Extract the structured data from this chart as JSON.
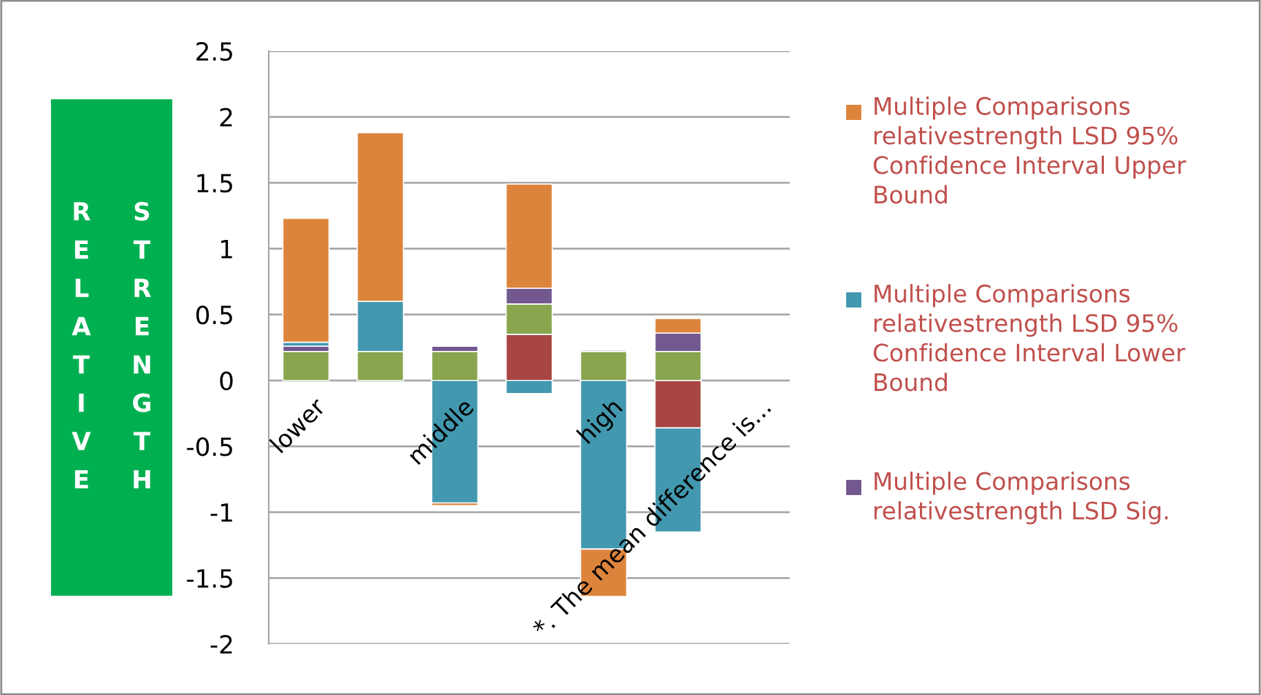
{
  "chart_data": {
    "type": "bar",
    "stacked": true,
    "ylabel": "RELATIVE STRENGTH",
    "categories": [
      "lower",
      null,
      "middle",
      null,
      "high",
      null,
      "*. The mean difference is..."
    ],
    "series": [
      {
        "color": "#a74542",
        "values": [
          null,
          null,
          null,
          0.35,
          null,
          -0.36,
          null
        ]
      },
      {
        "color": "#89a54e",
        "values": [
          0.22,
          0.22,
          0.22,
          0.23,
          0.22,
          0.22,
          null
        ]
      },
      {
        "name": "Multiple Comparisons relativestrength LSD Sig.",
        "color": "#72588f",
        "values": [
          0.04,
          null,
          0.04,
          0.12,
          0.01,
          0.14,
          null
        ]
      },
      {
        "name": "Multiple Comparisons relativestrength LSD 95% Confidence Interval Lower Bound",
        "color": "#4198af",
        "values": [
          0.03,
          0.38,
          -0.93,
          -0.1,
          -1.28,
          -0.79,
          null
        ]
      },
      {
        "name": "Multiple Comparisons relativestrength LSD 95% Confidence Interval Upper Bound",
        "color": "#dd843c",
        "values": [
          0.94,
          1.28,
          -0.02,
          0.79,
          -0.36,
          0.11,
          null
        ]
      }
    ],
    "ylim": [
      -2,
      2.5
    ],
    "yticks": [
      -2,
      -1.5,
      -1,
      -0.5,
      0,
      0.5,
      1,
      1.5,
      2,
      2.5
    ],
    "grid": "y",
    "legend": "right"
  }
}
